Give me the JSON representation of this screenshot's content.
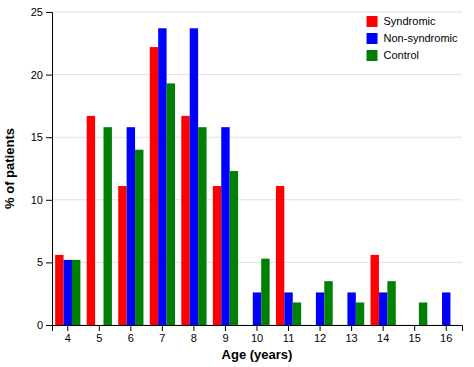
{
  "chart_data": {
    "type": "bar",
    "xlabel": "Age (years)",
    "ylabel": "% of patients",
    "categories": [
      "4",
      "5",
      "6",
      "7",
      "8",
      "9",
      "10",
      "11",
      "12",
      "13",
      "14",
      "15",
      "16"
    ],
    "series": [
      {
        "name": "Syndromic",
        "color": "#ff0000",
        "values": [
          5.6,
          16.7,
          11.1,
          22.2,
          16.7,
          11.1,
          0.0,
          11.1,
          0.0,
          0.0,
          5.6,
          0.0,
          0.0
        ]
      },
      {
        "name": "Non-syndromic",
        "color": "#0000ff",
        "values": [
          5.2,
          0.0,
          15.8,
          23.7,
          23.7,
          15.8,
          2.6,
          2.6,
          2.6,
          2.6,
          2.6,
          0.0,
          2.6
        ]
      },
      {
        "name": "Control",
        "color": "#008000",
        "values": [
          5.2,
          15.8,
          14.0,
          19.3,
          15.8,
          12.3,
          5.3,
          1.8,
          3.5,
          1.8,
          3.5,
          1.8,
          0.0
        ]
      }
    ],
    "ylim": [
      0,
      25
    ],
    "yticks": [
      0,
      5,
      10,
      15,
      20,
      25
    ],
    "grid": true,
    "legend": "top-right"
  }
}
